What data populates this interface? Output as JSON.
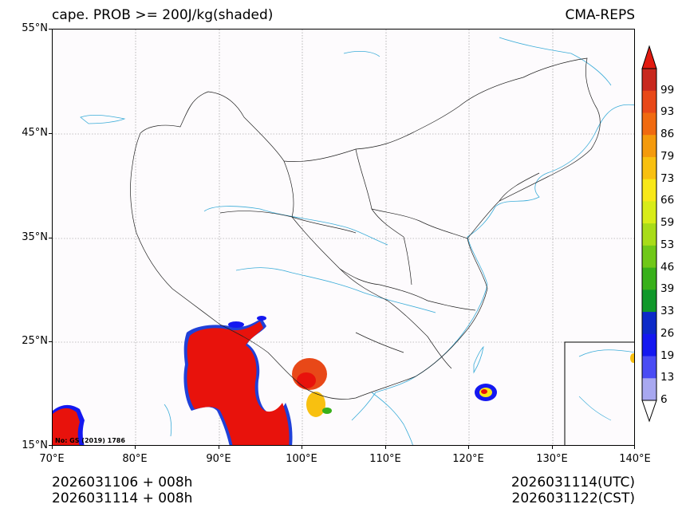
{
  "header": {
    "title_left": "cape. PROB >= 200J/kg(shaded)",
    "title_right": "CMA-REPS"
  },
  "axes": {
    "lat_labels": [
      "55°N",
      "45°N",
      "35°N",
      "25°N",
      "15°N"
    ],
    "lon_labels": [
      "70°E",
      "80°E",
      "90°E",
      "100°E",
      "110°E",
      "120°E",
      "130°E",
      "140°E"
    ]
  },
  "colorbar": {
    "labels": [
      "99",
      "93",
      "86",
      "79",
      "73",
      "66",
      "59",
      "53",
      "46",
      "39",
      "33",
      "26",
      "19",
      "13",
      "6"
    ],
    "colors": [
      "#c8281e",
      "#e84818",
      "#f06a10",
      "#f49a0c",
      "#f8c010",
      "#f8e818",
      "#d8ec18",
      "#a8dc18",
      "#70c818",
      "#38b01a",
      "#10982a",
      "#0c2ac8",
      "#1418f0",
      "#4a4cf4",
      "#a8a8f0"
    ],
    "over_color": "#e21a10",
    "under_color": "#ffffff"
  },
  "map": {
    "note": "No: GS (2019) 1786",
    "coast_color": "#3aacd8",
    "border_color": "#222222",
    "prob_high_color": "#e8120c"
  },
  "footer": {
    "init_time": "2026031106  +  008h",
    "init_time2": "2026031114  +  008h",
    "valid_utc": "2026031114(UTC)",
    "valid_cst": "2026031122(CST)"
  }
}
